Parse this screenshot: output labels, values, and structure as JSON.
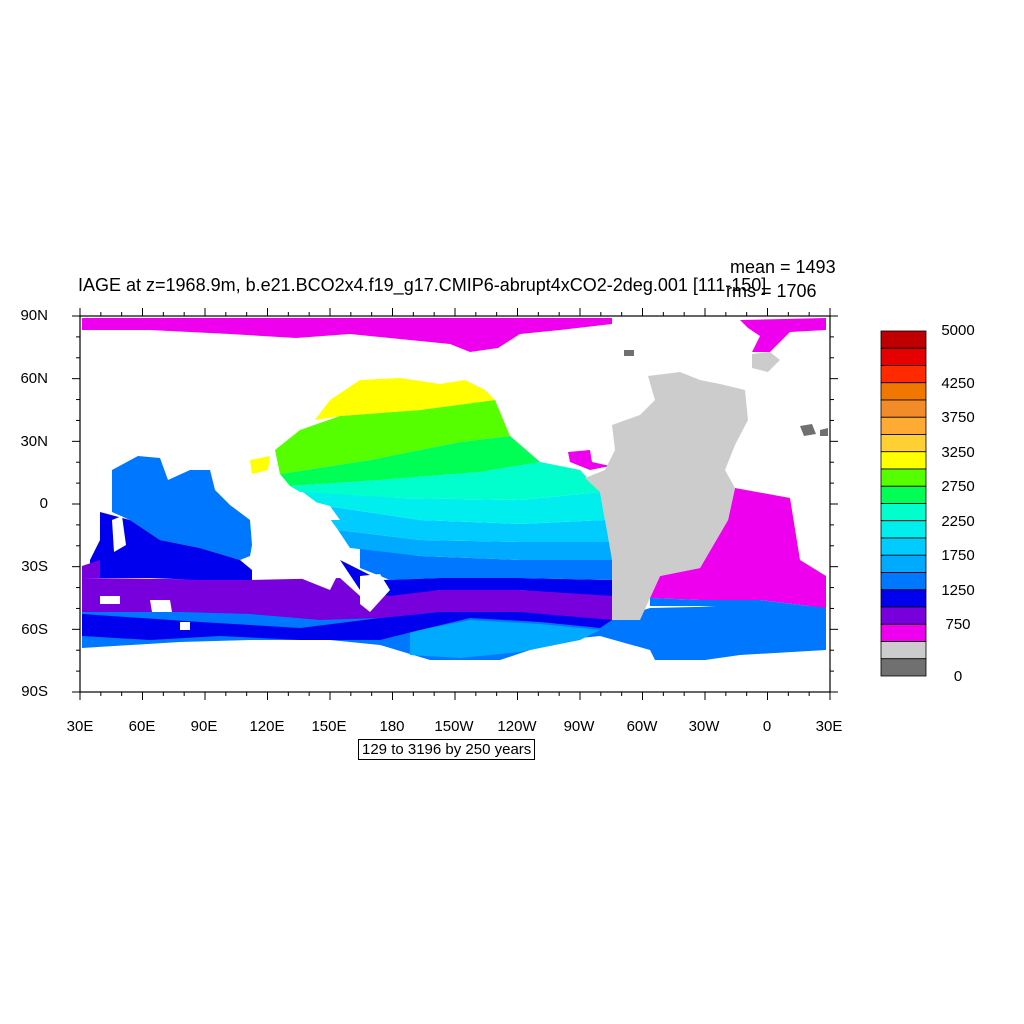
{
  "title": "IAGE at z=1968.9m, b.e21.BCO2x4.f19_g17.CMIP6-abrupt4xCO2-2deg.001 [111-150]",
  "stats": {
    "mean": "mean = 1493",
    "rms": "rms = 1706"
  },
  "contour_info": "129 to 3196 by 250 years",
  "axes": {
    "lat_labels": [
      "90N",
      "60N",
      "30N",
      "0",
      "30S",
      "60S",
      "90S"
    ],
    "lon_labels": [
      "30E",
      "60E",
      "90E",
      "120E",
      "150E",
      "180",
      "150W",
      "120W",
      "90W",
      "60W",
      "30W",
      "0",
      "30E"
    ]
  },
  "colorbar": {
    "labels": [
      "5000",
      "4250",
      "3750",
      "3250",
      "2750",
      "2250",
      "1750",
      "1250",
      "750",
      "0"
    ],
    "colors": [
      "#c00000",
      "#e60000",
      "#ff2a00",
      "#f07800",
      "#f28c28",
      "#ffaa33",
      "#ffd033",
      "#ffff00",
      "#55ff00",
      "#00ff55",
      "#00ffcc",
      "#00eeee",
      "#00ccff",
      "#00aaff",
      "#0077ff",
      "#0000ee",
      "#7700dd",
      "#ee00ee",
      "#cccccc",
      "#707070"
    ]
  },
  "legend_colors": {
    "land": "#cccccc",
    "age_250_500": "#ee00ee",
    "age_500_750": "#7700dd",
    "age_750_1000": "#0000ee",
    "age_1000_1250": "#0077ff",
    "age_1250_1500": "#00aaff",
    "age_1500_1750": "#00ccff",
    "age_1750_2000": "#00eeee",
    "age_2000_2250": "#00ffcc",
    "age_2250_2500": "#00ff55",
    "age_2500_2750": "#55ff00",
    "age_2750_3000": "#ffff00"
  }
}
